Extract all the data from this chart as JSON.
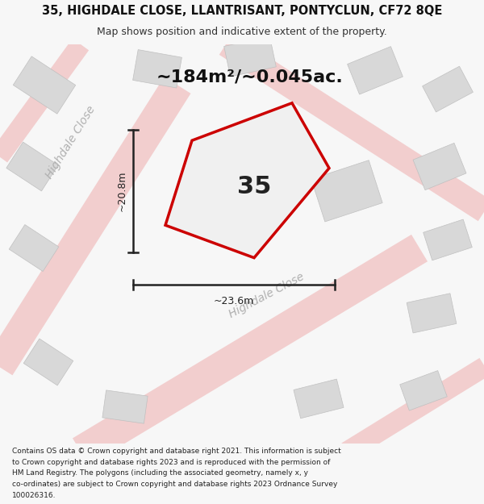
{
  "title_line1": "35, HIGHDALE CLOSE, LLANTRISANT, PONTYCLUN, CF72 8QE",
  "title_line2": "Map shows position and indicative extent of the property.",
  "area_text": "~184m²/~0.045ac.",
  "property_number": "35",
  "dim_vertical": "~20.8m",
  "dim_horizontal": "~23.6m",
  "street_label_1": "Highdale Close",
  "street_label_2": "Highdale Close",
  "footer_text": "Contains OS data © Crown copyright and database right 2021. This information is subject to Crown copyright and database rights 2023 and is reproduced with the permission of HM Land Registry. The polygons (including the associated geometry, namely x, y co-ordinates) are subject to Crown copyright and database rights 2023 Ordnance Survey 100026316.",
  "bg_color": "#f7f7f7",
  "map_bg": "#ffffff",
  "plot_color_fill": "#f0f0f0",
  "plot_color_edge": "#cc0000",
  "road_color": "#f2cece",
  "building_color": "#d8d8d8",
  "dim_color": "#222222",
  "street_color": "#b0b0b0",
  "figsize": [
    6.0,
    6.25
  ],
  "dpi": 100,
  "title_fontsize": 10.5,
  "subtitle_fontsize": 9,
  "footer_fontsize": 6.5,
  "area_fontsize": 16,
  "number_fontsize": 22,
  "dim_fontsize": 9,
  "street_fontsize": 10
}
